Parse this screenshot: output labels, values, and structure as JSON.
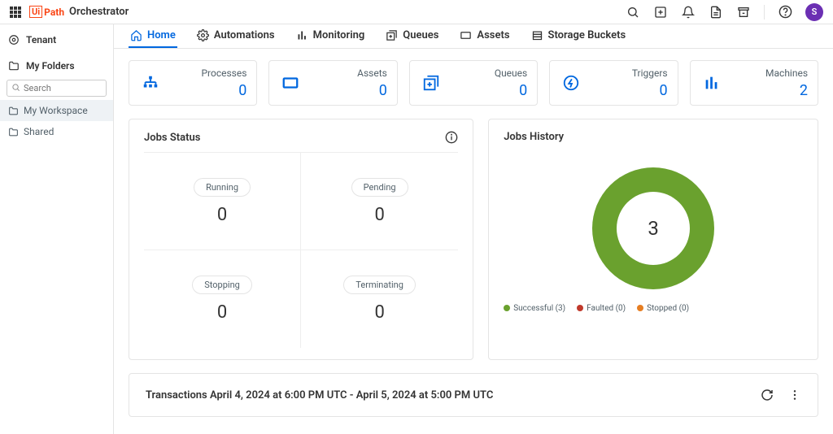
{
  "brand": {
    "ui": "Ui",
    "path": "Path",
    "product": "Orchestrator"
  },
  "avatar_letter": "S",
  "sidebar": {
    "tenant": "Tenant",
    "my_folders": "My Folders",
    "search_placeholder": "Search",
    "items": [
      {
        "label": "My Workspace",
        "active": true
      },
      {
        "label": "Shared",
        "active": false
      }
    ]
  },
  "tabs": [
    {
      "label": "Home",
      "icon": "home",
      "active": true
    },
    {
      "label": "Automations",
      "icon": "gear",
      "active": false
    },
    {
      "label": "Monitoring",
      "icon": "bars",
      "active": false
    },
    {
      "label": "Queues",
      "icon": "queue",
      "active": false
    },
    {
      "label": "Assets",
      "icon": "asset",
      "active": false
    },
    {
      "label": "Storage Buckets",
      "icon": "bucket",
      "active": false
    }
  ],
  "stats": [
    {
      "label": "Processes",
      "value": 0,
      "icon": "processes",
      "color": "#0067df"
    },
    {
      "label": "Assets",
      "value": 0,
      "icon": "asset-box",
      "color": "#0067df"
    },
    {
      "label": "Queues",
      "value": 0,
      "icon": "queue-add",
      "color": "#0067df"
    },
    {
      "label": "Triggers",
      "value": 0,
      "icon": "trigger",
      "color": "#0067df"
    },
    {
      "label": "Machines",
      "value": 2,
      "icon": "machines",
      "color": "#0067df"
    }
  ],
  "jobs_status": {
    "title": "Jobs Status",
    "cells": [
      {
        "label": "Running",
        "value": 0
      },
      {
        "label": "Pending",
        "value": 0
      },
      {
        "label": "Stopping",
        "value": 0
      },
      {
        "label": "Terminating",
        "value": 0
      }
    ]
  },
  "jobs_history": {
    "title": "Jobs History",
    "total": 3,
    "donut_color": "#6aa12e",
    "background_color": "#ffffff",
    "legend": [
      {
        "label": "Successful (3)",
        "color": "#6aa12e"
      },
      {
        "label": "Faulted (0)",
        "color": "#c0392b"
      },
      {
        "label": "Stopped (0)",
        "color": "#e67e22"
      }
    ]
  },
  "transactions": {
    "title": "Transactions April 4, 2024 at 6:00 PM UTC - April 5, 2024 at 5:00 PM UTC"
  },
  "colors": {
    "accent": "#0067df",
    "brand": "#fa4616",
    "border": "#e4e4e4",
    "text_muted": "#526069"
  }
}
